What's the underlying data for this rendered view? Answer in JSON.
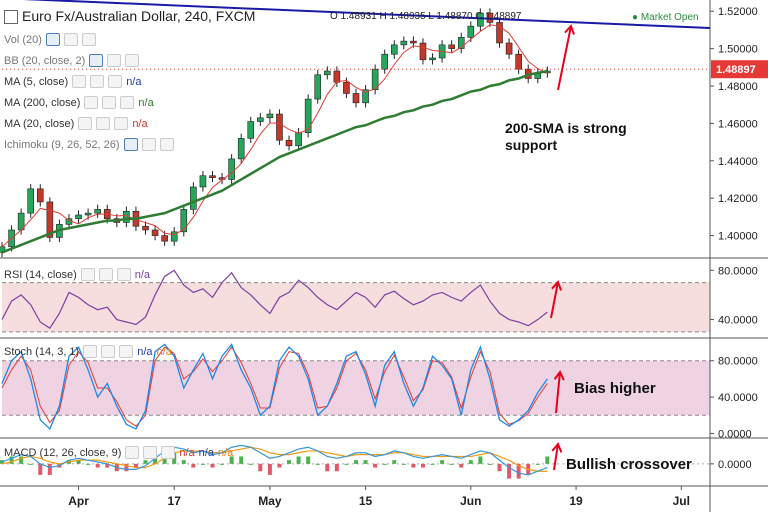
{
  "header": {
    "title": "Euro Fx/Australian Dollar, 240, FXCM",
    "ohlc": "O 1.48931  H 1.48935  L 1.48870  C 1.48897",
    "market_status": "● Market Open"
  },
  "legends": {
    "vol": "Vol (20)",
    "bb": "BB (20, close, 2)",
    "ma5": "MA (5, close)",
    "ma5_val": "n/a",
    "ma200": "MA (200, close)",
    "ma200_val": "n/a",
    "ma20": "MA (20, close)",
    "ma20_val": "n/a",
    "ichimoku": "Ichimoku (9, 26, 52, 26)",
    "rsi": "RSI (14, close)",
    "rsi_val": "n/a",
    "stoch": "Stoch (14, 3, 1)",
    "stoch_val1": "n/a",
    "stoch_val2": "n/a",
    "macd": "MACD (12, 26, close, 9)",
    "macd_val1": "n/a",
    "macd_val2": "n/a",
    "macd_val3": "n/a"
  },
  "annotations": {
    "support_line1": "200-SMA is strong",
    "support_line2": "support",
    "bias": "Bias higher",
    "crossover": "Bullish crossover"
  },
  "colors": {
    "up_candle": "#26a65b",
    "down_candle": "#c0392b",
    "sma200": "#2e7d32",
    "ma20": "#e53935",
    "trendline": "#1a1aa6",
    "rsi_line": "#7b3fa0",
    "stoch_k": "#1e88e5",
    "stoch_d": "#e53935",
    "arrow": "#e8001c",
    "price_label_bg": "#e53935"
  },
  "chart_data": [
    {
      "type": "candlestick",
      "panel": "price",
      "y_ticks": [
        "1.52000",
        "1.50000",
        "1.48000",
        "1.46000",
        "1.44000",
        "1.42000",
        "1.40000"
      ],
      "ylim": [
        1.388,
        1.526
      ],
      "last_price": "1.48897",
      "x_ticks": [
        "Apr",
        "17",
        "May",
        "15",
        "Jun",
        "19",
        "Jul"
      ],
      "x_tick_index": [
        8,
        18,
        28,
        38,
        49,
        60,
        71
      ],
      "x_range": [
        0,
        74
      ],
      "close_series": [
        1.394,
        1.403,
        1.412,
        1.425,
        1.418,
        1.399,
        1.406,
        1.409,
        1.411,
        1.412,
        1.414,
        1.409,
        1.407,
        1.413,
        1.405,
        1.403,
        1.4,
        1.397,
        1.402,
        1.414,
        1.426,
        1.432,
        1.431,
        1.43,
        1.441,
        1.452,
        1.461,
        1.463,
        1.465,
        1.451,
        1.448,
        1.455,
        1.473,
        1.486,
        1.488,
        1.482,
        1.476,
        1.471,
        1.478,
        1.489,
        1.497,
        1.502,
        1.504,
        1.503,
        1.494,
        1.495,
        1.502,
        1.5,
        1.506,
        1.512,
        1.519,
        1.514,
        1.503,
        1.497,
        1.489,
        1.484,
        1.487,
        1.488
      ],
      "sma200_series": [
        1.391,
        1.393,
        1.395,
        1.397,
        1.399,
        1.401,
        1.403,
        1.404,
        1.405,
        1.406,
        1.407,
        1.408,
        1.408,
        1.409,
        1.409,
        1.41,
        1.411,
        1.412,
        1.414,
        1.416,
        1.418,
        1.42,
        1.422,
        1.424,
        1.427,
        1.43,
        1.433,
        1.436,
        1.439,
        1.442,
        1.444,
        1.446,
        1.448,
        1.45,
        1.452,
        1.454,
        1.456,
        1.458,
        1.459,
        1.461,
        1.463,
        1.464,
        1.466,
        1.467,
        1.469,
        1.47,
        1.472,
        1.473,
        1.475,
        1.477,
        1.478,
        1.48,
        1.481,
        1.483,
        1.484,
        1.486,
        1.487,
        1.488
      ],
      "trendline": [
        [
          0,
          1.527
        ],
        [
          74,
          1.511
        ]
      ]
    },
    {
      "type": "line",
      "panel": "rsi",
      "name": "RSI (14, close)",
      "y_ticks": [
        "80.0000",
        "40.0000"
      ],
      "ylim": [
        25,
        90
      ],
      "levels": [
        70,
        30
      ],
      "values": [
        40,
        55,
        60,
        52,
        38,
        33,
        45,
        62,
        58,
        52,
        48,
        50,
        40,
        38,
        36,
        42,
        60,
        75,
        80,
        68,
        62,
        65,
        58,
        70,
        78,
        66,
        60,
        52,
        45,
        58,
        62,
        72,
        66,
        58,
        52,
        48,
        55,
        62,
        58,
        50,
        60,
        63,
        57,
        52,
        55,
        60,
        62,
        58,
        55,
        62,
        68,
        55,
        45,
        40,
        38,
        35,
        40,
        46
      ]
    },
    {
      "type": "line",
      "panel": "stoch",
      "name": "Stoch (14, 3, 1)",
      "y_ticks": [
        "80.0000",
        "40.0000",
        "0.0000"
      ],
      "ylim": [
        -5,
        105
      ],
      "levels": [
        80,
        20
      ],
      "k_values": [
        55,
        80,
        90,
        60,
        15,
        5,
        30,
        85,
        95,
        70,
        40,
        55,
        30,
        10,
        5,
        25,
        90,
        98,
        85,
        50,
        70,
        88,
        60,
        85,
        98,
        70,
        50,
        20,
        30,
        80,
        95,
        85,
        60,
        20,
        30,
        55,
        85,
        90,
        65,
        30,
        75,
        90,
        55,
        30,
        50,
        85,
        75,
        60,
        20,
        70,
        95,
        60,
        15,
        8,
        15,
        25,
        45,
        60
      ],
      "d_values": [
        50,
        70,
        85,
        70,
        30,
        12,
        25,
        75,
        90,
        78,
        50,
        50,
        35,
        15,
        8,
        20,
        80,
        95,
        88,
        60,
        68,
        82,
        68,
        80,
        95,
        78,
        55,
        28,
        28,
        72,
        90,
        88,
        65,
        28,
        30,
        50,
        80,
        88,
        70,
        38,
        68,
        86,
        62,
        36,
        48,
        80,
        78,
        62,
        28,
        62,
        90,
        68,
        22,
        10,
        14,
        22,
        40,
        55
      ]
    },
    {
      "type": "line",
      "panel": "macd",
      "name": "MACD (12, 26, close, 9)",
      "y_ticks": [
        "0.0000"
      ],
      "ylim": [
        -0.012,
        0.014
      ],
      "macd_values": [
        0.001,
        0.003,
        0.005,
        0.004,
        0.0,
        -0.002,
        -0.001,
        0.002,
        0.003,
        0.002,
        0.001,
        0.0,
        -0.002,
        -0.003,
        -0.003,
        -0.001,
        0.003,
        0.007,
        0.009,
        0.008,
        0.006,
        0.007,
        0.005,
        0.006,
        0.009,
        0.01,
        0.009,
        0.006,
        0.003,
        0.004,
        0.006,
        0.008,
        0.009,
        0.007,
        0.004,
        0.003,
        0.004,
        0.006,
        0.006,
        0.004,
        0.005,
        0.007,
        0.006,
        0.004,
        0.003,
        0.004,
        0.005,
        0.004,
        0.003,
        0.005,
        0.007,
        0.006,
        0.002,
        -0.002,
        -0.005,
        -0.006,
        -0.004,
        -0.002
      ],
      "signal_values": [
        0.0,
        0.001,
        0.003,
        0.004,
        0.003,
        0.001,
        0.0,
        0.001,
        0.002,
        0.002,
        0.002,
        0.001,
        0.0,
        -0.001,
        -0.002,
        -0.002,
        0.0,
        0.003,
        0.006,
        0.007,
        0.007,
        0.007,
        0.006,
        0.006,
        0.007,
        0.008,
        0.009,
        0.008,
        0.006,
        0.005,
        0.005,
        0.006,
        0.007,
        0.007,
        0.006,
        0.005,
        0.004,
        0.005,
        0.005,
        0.005,
        0.005,
        0.006,
        0.006,
        0.005,
        0.004,
        0.004,
        0.004,
        0.004,
        0.004,
        0.004,
        0.005,
        0.006,
        0.004,
        0.002,
        -0.001,
        -0.003,
        -0.004,
        -0.004
      ]
    }
  ]
}
